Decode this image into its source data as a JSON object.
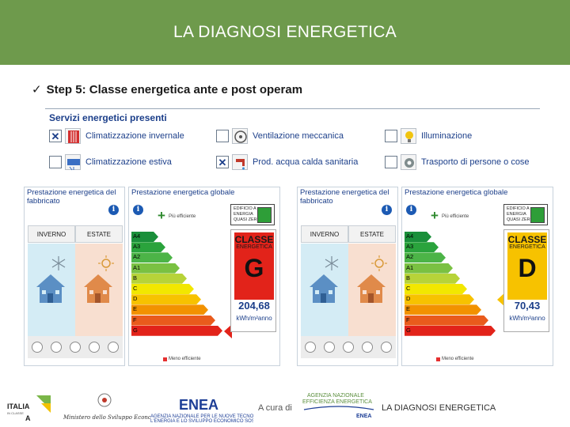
{
  "header": {
    "title": "LA DIAGNOSI ENERGETICA",
    "bg_color": "#6e9a4c"
  },
  "step": {
    "check": "✓",
    "text": "Step 5: Classe energetica ante e post operam"
  },
  "services": {
    "title": "Servizi energetici presenti",
    "items": [
      {
        "label": "Climatizzazione invernale",
        "checked": true,
        "icon": "radiator-icon"
      },
      {
        "label": "Climatizzazione estiva",
        "checked": false,
        "icon": "air-conditioner-icon"
      },
      {
        "label": "Ventilazione meccanica",
        "checked": false,
        "icon": "fan-icon"
      },
      {
        "label": "Prod. acqua calda sanitaria",
        "checked": true,
        "icon": "tap-icon"
      },
      {
        "label": "Illuminazione",
        "checked": false,
        "icon": "lightbulb-icon"
      },
      {
        "label": "Trasporto di persone o cose",
        "checked": false,
        "icon": "gear-icon"
      }
    ]
  },
  "ape_labels": {
    "building_performance_title": "Prestazione energetica del fabbricato",
    "global_performance_title": "Prestazione energetica globale",
    "winter": "INVERNO",
    "summer": "ESTATE",
    "more_efficient": "Più efficiente",
    "less_efficient": "Meno efficiente",
    "nzeb_text": "EDIFICIO A ENERGIA QUASI ZERO",
    "classe": "CLASSE",
    "energetica": "ENERGETICA",
    "unit": "kWh/m²anno",
    "classes": [
      "A4",
      "A3",
      "A2",
      "A1",
      "B",
      "C",
      "D",
      "E",
      "F",
      "G"
    ],
    "class_colors": [
      "#1a8f3a",
      "#2aa33c",
      "#4cb447",
      "#7ac142",
      "#b7d339",
      "#f2e700",
      "#f7c200",
      "#f29200",
      "#e95b1c",
      "#e2231a"
    ]
  },
  "ante": {
    "class": "G",
    "value": "204,68",
    "highlight_index": 9,
    "color": "#e2231a"
  },
  "post": {
    "class": "D",
    "value": "70,43",
    "highlight_index": 6,
    "color": "#f7c200"
  },
  "footer": {
    "credit": "A cura di",
    "title": "LA DIAGNOSI ENERGETICA",
    "logo_italia": "ITALIA IN CLASSE A",
    "logo_ministero": "Ministero dello Sviluppo Economico",
    "logo_enea": "ENEA",
    "logo_enea_caption": "AGENZIA NAZIONALE PER LE NUOVE TECNOLOGIE, L'ENERGIA E LO SVILUPPO ECONOMICO SOSTENIBILE",
    "logo_agenzia": "AGENZIA NAZIONALE EFFICIENZA ENERGETICA",
    "logo_agenzia_sub": "ENEA"
  }
}
